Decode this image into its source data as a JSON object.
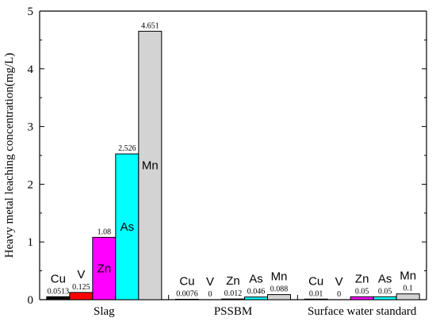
{
  "chart_data": {
    "type": "bar",
    "title": "",
    "xlabel": "",
    "ylabel": "Heavy metal leaching concentration(mg/L)",
    "ylim": [
      0,
      5
    ],
    "yticks": [
      "0",
      "1",
      "2",
      "3",
      "4",
      "5"
    ],
    "grid": false,
    "legend": "none",
    "categories": [
      "Slag",
      "PSSBM",
      "Surface water standard"
    ],
    "series": [
      {
        "name": "Cu",
        "color": "#000000",
        "values": [
          0.0513,
          0.0076,
          0.01
        ],
        "labels": [
          "0.0513",
          "0.0076",
          "0.01"
        ]
      },
      {
        "name": "V",
        "color": "#ff0000",
        "values": [
          0.125,
          0,
          0
        ],
        "labels": [
          "0.125",
          "0",
          "0"
        ]
      },
      {
        "name": "Zn",
        "color": "#ff00ff",
        "values": [
          1.08,
          0.012,
          0.05
        ],
        "labels": [
          "1.08",
          "0.012",
          "0.05"
        ]
      },
      {
        "name": "As",
        "color": "#00ffff",
        "values": [
          2.526,
          0.046,
          0.05
        ],
        "labels": [
          "2.526",
          "0.046",
          "0.05"
        ]
      },
      {
        "name": "Mn",
        "color": "#d3d3d3",
        "values": [
          4.651,
          0.088,
          0.1
        ],
        "labels": [
          "4.651",
          "0.088",
          "0.1"
        ]
      }
    ]
  }
}
